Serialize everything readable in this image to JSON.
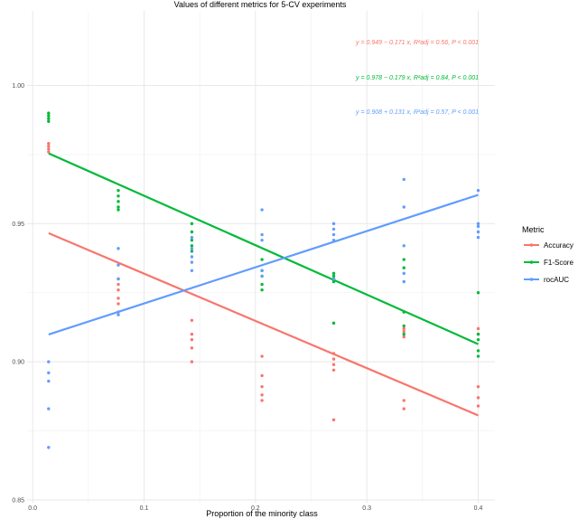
{
  "chart_data": {
    "type": "scatter",
    "title": "Values of different metrics for 5-CV experiments",
    "xlabel": "Proportion of the minority class",
    "ylabel": "",
    "xlim": [
      -0.005,
      0.415
    ],
    "ylim": [
      0.849,
      1.027
    ],
    "x_ticks": [
      0.0,
      0.1,
      0.2,
      0.3,
      0.4
    ],
    "x_tick_labels": [
      "0.0",
      "0.1",
      "0.2",
      "0.3",
      "0.4"
    ],
    "y_ticks": [
      0.85,
      0.9,
      0.95,
      1.0
    ],
    "y_tick_labels": [
      "0.85",
      "0.90",
      "0.95",
      "1.00"
    ],
    "grid": true,
    "legend": {
      "title": "Metric",
      "position": "right",
      "entries": [
        "Accuracy",
        "F1-Score",
        "rocAUC"
      ]
    },
    "series": [
      {
        "name": "Accuracy",
        "color": "#F8766D",
        "x": [
          0.0143,
          0.0143,
          0.0143,
          0.0143,
          0.0769,
          0.0769,
          0.0769,
          0.0769,
          0.0769,
          0.1429,
          0.1429,
          0.1429,
          0.1429,
          0.1429,
          0.2059,
          0.2059,
          0.2059,
          0.2059,
          0.2059,
          0.2703,
          0.2703,
          0.2703,
          0.2703,
          0.2703,
          0.3333,
          0.3333,
          0.3333,
          0.3333,
          0.3333,
          0.4,
          0.4,
          0.4,
          0.4,
          0.4
        ],
        "y": [
          0.979,
          0.978,
          0.977,
          0.976,
          0.93,
          0.928,
          0.926,
          0.923,
          0.921,
          0.915,
          0.91,
          0.908,
          0.905,
          0.9,
          0.902,
          0.895,
          0.891,
          0.888,
          0.886,
          0.903,
          0.901,
          0.899,
          0.897,
          0.879,
          0.912,
          0.911,
          0.909,
          0.886,
          0.883,
          0.912,
          0.91,
          0.891,
          0.887,
          0.884
        ],
        "trend": {
          "intercept": 0.949,
          "slope": -0.171
        }
      },
      {
        "name": "F1-Score",
        "color": "#00BA38",
        "x": [
          0.0143,
          0.0143,
          0.0143,
          0.0143,
          0.0769,
          0.0769,
          0.0769,
          0.0769,
          0.0769,
          0.1429,
          0.1429,
          0.1429,
          0.1429,
          0.1429,
          0.2059,
          0.2059,
          0.2059,
          0.2059,
          0.2059,
          0.2703,
          0.2703,
          0.2703,
          0.2703,
          0.2703,
          0.3333,
          0.3333,
          0.3333,
          0.3333,
          0.3333,
          0.4,
          0.4,
          0.4,
          0.4,
          0.4
        ],
        "y": [
          0.99,
          0.989,
          0.988,
          0.987,
          0.962,
          0.96,
          0.958,
          0.956,
          0.955,
          0.95,
          0.947,
          0.944,
          0.942,
          0.94,
          0.937,
          0.933,
          0.931,
          0.928,
          0.926,
          0.932,
          0.931,
          0.929,
          0.93,
          0.914,
          0.937,
          0.934,
          0.918,
          0.913,
          0.91,
          0.925,
          0.91,
          0.908,
          0.904,
          0.902
        ],
        "trend": {
          "intercept": 0.978,
          "slope": -0.179
        }
      },
      {
        "name": "rocAUC",
        "color": "#619CFF",
        "x": [
          0.0143,
          0.0143,
          0.0143,
          0.0143,
          0.0143,
          0.0769,
          0.0769,
          0.0769,
          0.0769,
          0.0769,
          0.1429,
          0.1429,
          0.1429,
          0.1429,
          0.1429,
          0.2059,
          0.2059,
          0.2059,
          0.2059,
          0.2059,
          0.2703,
          0.2703,
          0.2703,
          0.2703,
          0.2703,
          0.3333,
          0.3333,
          0.3333,
          0.3333,
          0.3333,
          0.4,
          0.4,
          0.4,
          0.4,
          0.4
        ],
        "y": [
          0.9,
          0.896,
          0.893,
          0.883,
          0.869,
          0.941,
          0.935,
          0.93,
          0.918,
          0.917,
          0.945,
          0.941,
          0.938,
          0.936,
          0.933,
          0.955,
          0.946,
          0.944,
          0.933,
          0.931,
          0.95,
          0.948,
          0.946,
          0.944,
          0.93,
          0.966,
          0.956,
          0.942,
          0.932,
          0.929,
          0.962,
          0.95,
          0.949,
          0.947,
          0.945
        ],
        "trend": {
          "intercept": 0.908,
          "slope": 0.131
        }
      }
    ],
    "annotations": [
      {
        "text": "y = 0.949 − 0.171 x, R²adj = 0.56, P < 0.001",
        "color": "#F8766D"
      },
      {
        "text": "y = 0.978 − 0.179 x, R²adj = 0.84, P < 0.001",
        "color": "#00BA38"
      },
      {
        "text": "y = 0.908 + 0.131 x, R²adj = 0.57, P < 0.001",
        "color": "#619CFF"
      }
    ]
  }
}
